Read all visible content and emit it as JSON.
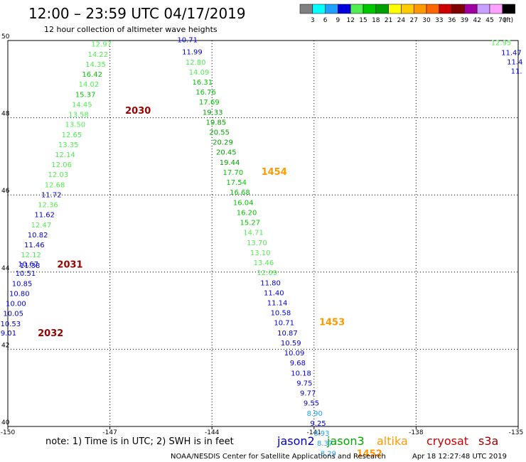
{
  "header": {
    "title": "12:00 – 23:59 UTC 04/17/2019",
    "subtitle": "12 hour collection of altimeter wave heights"
  },
  "colorbar": {
    "labels": [
      "3",
      "6",
      "9",
      "12",
      "15",
      "18",
      "21",
      "24",
      "27",
      "30",
      "33",
      "36",
      "39",
      "42",
      "45",
      "70"
    ],
    "unit": "(ft)",
    "colors": [
      "#808080",
      "#00ffff",
      "#1ea0ff",
      "#0000dc",
      "#50ee50",
      "#00c800",
      "#00a000",
      "#ffff00",
      "#ffcc00",
      "#ff9900",
      "#ff6600",
      "#cc0000",
      "#800000",
      "#a000a0",
      "#c8a0ff",
      "#ffa0ff",
      "#000000"
    ]
  },
  "footer": {
    "note": "note: 1) Time is in UTC; 2) SWH is in feet",
    "credit": "NOAA/NESDIS Center for Satellite Applications and Research",
    "timestamp": "Apr 18 12:27:48 UTC 2019",
    "missions": [
      {
        "name": "jason2",
        "color": "#0000cc"
      },
      {
        "name": "jason3",
        "color": "#00aa00"
      },
      {
        "name": "altika",
        "color": "#ff9900"
      },
      {
        "name": "cryosat",
        "color": "#cc0000"
      },
      {
        "name": "s3a",
        "color": "#990000"
      }
    ]
  },
  "chart_data": {
    "type": "scatter",
    "xlim": [
      -150,
      -135
    ],
    "ylim": [
      40,
      50
    ],
    "x_ticks": [
      "-150",
      "-147",
      "-144",
      "-141",
      "-138",
      "-135"
    ],
    "x_tick_values": [
      -150,
      -147,
      -144,
      -141,
      -138,
      -135
    ],
    "y_ticks": [
      "40",
      "42",
      "44",
      "46",
      "48",
      "50"
    ],
    "y_tick_values": [
      40,
      42,
      44,
      46,
      48,
      50
    ],
    "grid": true,
    "legend": "bottom",
    "series": [
      {
        "name": "jason2",
        "color": "#0000cc",
        "points": []
      },
      {
        "name": "jason3",
        "color": "#00aa00",
        "points": []
      },
      {
        "name": "altika",
        "color": "#ff9900",
        "points": []
      },
      {
        "name": "cryosat",
        "color": "#cc0000",
        "points": []
      },
      {
        "name": "s3a",
        "color": "#990000",
        "points": []
      }
    ],
    "points": [
      {
        "lon": -147.25,
        "lat": 49.84,
        "v": "12.97"
      },
      {
        "lon": -147.35,
        "lat": 49.58,
        "v": "14.22"
      },
      {
        "lon": -147.42,
        "lat": 49.32,
        "v": "14.35"
      },
      {
        "lon": -147.52,
        "lat": 49.06,
        "v": "16.42"
      },
      {
        "lon": -147.62,
        "lat": 48.8,
        "v": "14.02"
      },
      {
        "lon": -147.72,
        "lat": 48.54,
        "v": "15.37"
      },
      {
        "lon": -147.82,
        "lat": 48.28,
        "v": "14.45"
      },
      {
        "lon": -147.92,
        "lat": 48.02,
        "v": "13.58"
      },
      {
        "lon": -148.02,
        "lat": 47.76,
        "v": "13.50"
      },
      {
        "lon": -148.12,
        "lat": 47.5,
        "v": "12.65"
      },
      {
        "lon": -148.22,
        "lat": 47.24,
        "v": "13.35"
      },
      {
        "lon": -148.32,
        "lat": 46.98,
        "v": "12.14"
      },
      {
        "lon": -148.42,
        "lat": 46.72,
        "v": "12.06"
      },
      {
        "lon": -148.52,
        "lat": 46.46,
        "v": "12.03"
      },
      {
        "lon": -148.62,
        "lat": 46.2,
        "v": "12.68"
      },
      {
        "lon": -148.72,
        "lat": 45.94,
        "v": "11.72"
      },
      {
        "lon": -148.82,
        "lat": 45.68,
        "v": "12.36"
      },
      {
        "lon": -148.92,
        "lat": 45.42,
        "v": "11.62"
      },
      {
        "lon": -149.02,
        "lat": 45.16,
        "v": "12.47"
      },
      {
        "lon": -149.12,
        "lat": 44.9,
        "v": "10.82"
      },
      {
        "lon": -149.22,
        "lat": 44.64,
        "v": "11.46"
      },
      {
        "lon": -149.32,
        "lat": 44.38,
        "v": "12.12"
      },
      {
        "lon": -149.4,
        "lat": 44.14,
        "v": "10.67"
      },
      {
        "lon": -149.35,
        "lat": 44.11,
        "v": "11.38"
      },
      {
        "lon": -149.48,
        "lat": 43.9,
        "v": "10.51"
      },
      {
        "lon": -149.58,
        "lat": 43.64,
        "v": "10.85"
      },
      {
        "lon": -149.66,
        "lat": 43.38,
        "v": "10.80"
      },
      {
        "lon": -149.76,
        "lat": 43.12,
        "v": "10.00"
      },
      {
        "lon": -149.84,
        "lat": 42.86,
        "v": "10.05"
      },
      {
        "lon": -149.92,
        "lat": 42.6,
        "v": "10.53"
      },
      {
        "lon": -149.98,
        "lat": 42.36,
        "v": "9.01"
      },
      {
        "lon": -144.72,
        "lat": 49.95,
        "v": "10.71"
      },
      {
        "lon": -144.58,
        "lat": 49.64,
        "v": "11.99"
      },
      {
        "lon": -144.48,
        "lat": 49.37,
        "v": "12.80"
      },
      {
        "lon": -144.38,
        "lat": 49.12,
        "v": "14.09"
      },
      {
        "lon": -144.28,
        "lat": 48.86,
        "v": "16.31"
      },
      {
        "lon": -144.18,
        "lat": 48.6,
        "v": "16.76"
      },
      {
        "lon": -144.08,
        "lat": 48.34,
        "v": "17.69"
      },
      {
        "lon": -143.98,
        "lat": 48.08,
        "v": "19.33"
      },
      {
        "lon": -143.88,
        "lat": 47.82,
        "v": "19.85"
      },
      {
        "lon": -143.78,
        "lat": 47.56,
        "v": "20.55"
      },
      {
        "lon": -143.68,
        "lat": 47.3,
        "v": "20.29"
      },
      {
        "lon": -143.58,
        "lat": 47.04,
        "v": "20.45"
      },
      {
        "lon": -143.48,
        "lat": 46.78,
        "v": "19.44"
      },
      {
        "lon": -143.38,
        "lat": 46.52,
        "v": "17.70"
      },
      {
        "lon": -143.28,
        "lat": 46.26,
        "v": "17.54"
      },
      {
        "lon": -143.18,
        "lat": 46.0,
        "v": "16.68"
      },
      {
        "lon": -143.08,
        "lat": 45.74,
        "v": "16.04"
      },
      {
        "lon": -142.98,
        "lat": 45.48,
        "v": "16.20"
      },
      {
        "lon": -142.88,
        "lat": 45.22,
        "v": "15.27"
      },
      {
        "lon": -142.78,
        "lat": 44.96,
        "v": "14.71"
      },
      {
        "lon": -142.68,
        "lat": 44.7,
        "v": "13.70"
      },
      {
        "lon": -142.58,
        "lat": 44.44,
        "v": "13.10"
      },
      {
        "lon": -142.48,
        "lat": 44.18,
        "v": "13.46"
      },
      {
        "lon": -142.38,
        "lat": 43.92,
        "v": "12.09"
      },
      {
        "lon": -142.28,
        "lat": 43.66,
        "v": "11.80"
      },
      {
        "lon": -142.18,
        "lat": 43.4,
        "v": "11.40"
      },
      {
        "lon": -142.08,
        "lat": 43.14,
        "v": "11.14"
      },
      {
        "lon": -141.98,
        "lat": 42.88,
        "v": "10.58"
      },
      {
        "lon": -141.88,
        "lat": 42.62,
        "v": "10.71"
      },
      {
        "lon": -141.78,
        "lat": 42.36,
        "v": "10.87"
      },
      {
        "lon": -141.68,
        "lat": 42.1,
        "v": "10.59"
      },
      {
        "lon": -141.58,
        "lat": 41.84,
        "v": "10.09"
      },
      {
        "lon": -141.48,
        "lat": 41.58,
        "v": "9.68"
      },
      {
        "lon": -141.38,
        "lat": 41.32,
        "v": "10.18"
      },
      {
        "lon": -141.28,
        "lat": 41.06,
        "v": "9.75"
      },
      {
        "lon": -141.18,
        "lat": 40.8,
        "v": "9.77"
      },
      {
        "lon": -141.08,
        "lat": 40.54,
        "v": "9.55"
      },
      {
        "lon": -140.98,
        "lat": 40.28,
        "v": "8.90"
      },
      {
        "lon": -140.88,
        "lat": 40.02,
        "v": "9.25"
      },
      {
        "lon": -140.78,
        "lat": 39.76,
        "v": "8.93"
      },
      {
        "lon": -140.68,
        "lat": 39.5,
        "v": "8.37"
      },
      {
        "lon": -140.58,
        "lat": 39.24,
        "v": "8.29"
      },
      {
        "lon": -135.5,
        "lat": 49.88,
        "v": "12.95"
      },
      {
        "lon": -135.2,
        "lat": 49.62,
        "v": "11.47"
      },
      {
        "lon": -135.1,
        "lat": 49.38,
        "v": "11.4"
      },
      {
        "lon": -135.05,
        "lat": 49.14,
        "v": "11."
      }
    ],
    "time_labels": [
      {
        "lon": -146.55,
        "lat": 48.1,
        "text": "2030",
        "sat": "s3a"
      },
      {
        "lon": -148.55,
        "lat": 44.12,
        "text": "2031",
        "sat": "s3a"
      },
      {
        "lon": -149.12,
        "lat": 42.34,
        "text": "2032",
        "sat": "s3a"
      },
      {
        "lon": -142.55,
        "lat": 46.52,
        "text": "1454",
        "sat": "altika"
      },
      {
        "lon": -140.85,
        "lat": 42.62,
        "text": "1453",
        "sat": "altika"
      },
      {
        "lon": -139.75,
        "lat": 39.22,
        "text": "1452",
        "sat": "altika"
      }
    ]
  }
}
